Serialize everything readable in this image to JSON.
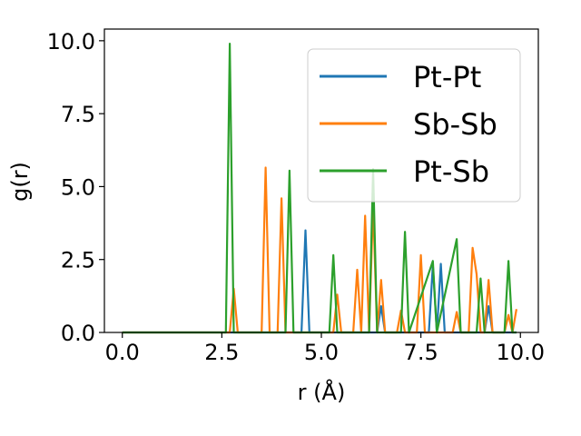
{
  "chart_data": {
    "type": "line",
    "xlabel": "r (Å)",
    "ylabel": "g(r)",
    "xlim": [
      -0.45,
      10.45
    ],
    "ylim": [
      0,
      10.4
    ],
    "xticks": [
      "0.0",
      "2.5",
      "5.0",
      "7.5",
      "10.0"
    ],
    "yticks": [
      "0.0",
      "2.5",
      "5.0",
      "7.5",
      "10.0"
    ],
    "xtick_values": [
      0,
      2.5,
      5,
      7.5,
      10
    ],
    "ytick_values": [
      0,
      2.5,
      5,
      7.5,
      10
    ],
    "grid": false,
    "legend": "top-right",
    "series": [
      {
        "name": "Pt-Pt",
        "color": "#1f77b4",
        "x": [
          0,
          4.5,
          4.6,
          4.7,
          6.4,
          6.5,
          6.6,
          7.7,
          7.8,
          7.9,
          8.0,
          8.1,
          9.1,
          9.2,
          9.3,
          9.9
        ],
        "y": [
          0,
          0,
          3.5,
          0,
          0,
          0.9,
          0,
          0,
          2.3,
          0,
          2.35,
          0,
          0,
          0.9,
          0,
          0
        ]
      },
      {
        "name": "Sb-Sb",
        "color": "#ff7f0e",
        "x": [
          0,
          2.7,
          2.8,
          2.9,
          3.5,
          3.6,
          3.7,
          3.9,
          4.0,
          4.1,
          5.3,
          5.4,
          5.5,
          5.8,
          5.9,
          6.0,
          6.1,
          6.2,
          6.3,
          6.4,
          6.5,
          6.6,
          6.9,
          7.0,
          7.1,
          7.4,
          7.5,
          7.6,
          8.3,
          8.4,
          8.5,
          8.7,
          8.8,
          8.9,
          9.0,
          9.1,
          9.2,
          9.3,
          9.6,
          9.7,
          9.8,
          9.9
        ],
        "y": [
          0,
          0,
          1.5,
          0,
          0,
          5.65,
          0,
          0,
          4.6,
          0,
          0,
          1.3,
          0,
          0,
          2.15,
          0,
          4.0,
          0,
          4.4,
          0,
          1.8,
          0,
          0,
          0.75,
          0,
          0,
          2.65,
          0,
          0,
          0.7,
          0,
          0,
          2.9,
          2.0,
          0,
          0,
          1.8,
          0,
          0,
          0.6,
          0,
          0.8
        ]
      },
      {
        "name": "Pt-Sb",
        "color": "#2ca02c",
        "x": [
          0,
          2.6,
          2.7,
          2.8,
          4.1,
          4.2,
          4.3,
          5.2,
          5.3,
          5.4,
          6.2,
          6.3,
          6.4,
          7.0,
          7.1,
          7.2,
          7.8,
          7.9,
          8.4,
          8.5,
          8.6,
          8.9,
          9.0,
          9.1,
          9.6,
          9.7,
          9.8,
          9.9
        ],
        "y": [
          0,
          0,
          9.9,
          0,
          0,
          5.55,
          0,
          0,
          2.65,
          0,
          0,
          5.6,
          0,
          0,
          3.45,
          0,
          2.45,
          0,
          3.2,
          0,
          0,
          0,
          1.85,
          0,
          0,
          2.45,
          0,
          0
        ]
      }
    ]
  }
}
